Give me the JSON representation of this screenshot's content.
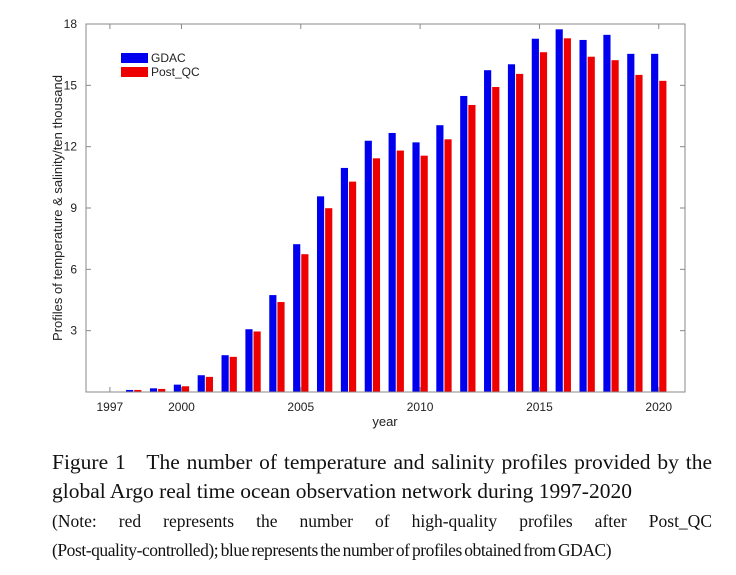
{
  "chart_data": {
    "type": "bar",
    "xlabel": "year",
    "ylabel": "Profiles of temperature & salinity/ten thousand",
    "xlim": [
      1996,
      2021.1
    ],
    "ylim": [
      0,
      18
    ],
    "xticks": [
      1997,
      2000,
      2005,
      2010,
      2015,
      2020
    ],
    "yticks": [
      3,
      6,
      9,
      12,
      15,
      18
    ],
    "grid": false,
    "legend_position": "top-left",
    "categories": [
      1997,
      1998,
      1999,
      2000,
      2001,
      2002,
      2003,
      2004,
      2005,
      2006,
      2007,
      2008,
      2009,
      2010,
      2011,
      2012,
      2013,
      2014,
      2015,
      2016,
      2017,
      2018,
      2019,
      2020
    ],
    "series": [
      {
        "name": "GDAC",
        "color": "#0000ee",
        "values": [
          0.02,
          0.1,
          0.18,
          0.36,
          0.82,
          1.8,
          3.07,
          4.74,
          7.23,
          9.57,
          10.96,
          12.29,
          12.67,
          12.21,
          13.05,
          14.48,
          15.74,
          16.03,
          17.28,
          17.74,
          17.22,
          17.47,
          16.54,
          16.54
        ]
      },
      {
        "name": "Post_QC",
        "color": "#ee0000",
        "values": [
          0.02,
          0.1,
          0.15,
          0.28,
          0.74,
          1.72,
          2.96,
          4.4,
          6.74,
          8.99,
          10.29,
          11.43,
          11.81,
          11.56,
          12.36,
          14.04,
          14.92,
          15.56,
          16.62,
          17.3,
          16.4,
          16.23,
          15.51,
          15.22
        ]
      }
    ]
  },
  "caption": {
    "line1": "Figure 1   The number of temperature and salinity profiles provided by the",
    "line2": "global Argo real time ocean observation network during 1997-2020",
    "note1": "(Note: red represents the number of high-quality profiles after Post_QC",
    "note2": "(Post-quality-controlled); blue represents the number of profiles obtained from GDAC)"
  }
}
